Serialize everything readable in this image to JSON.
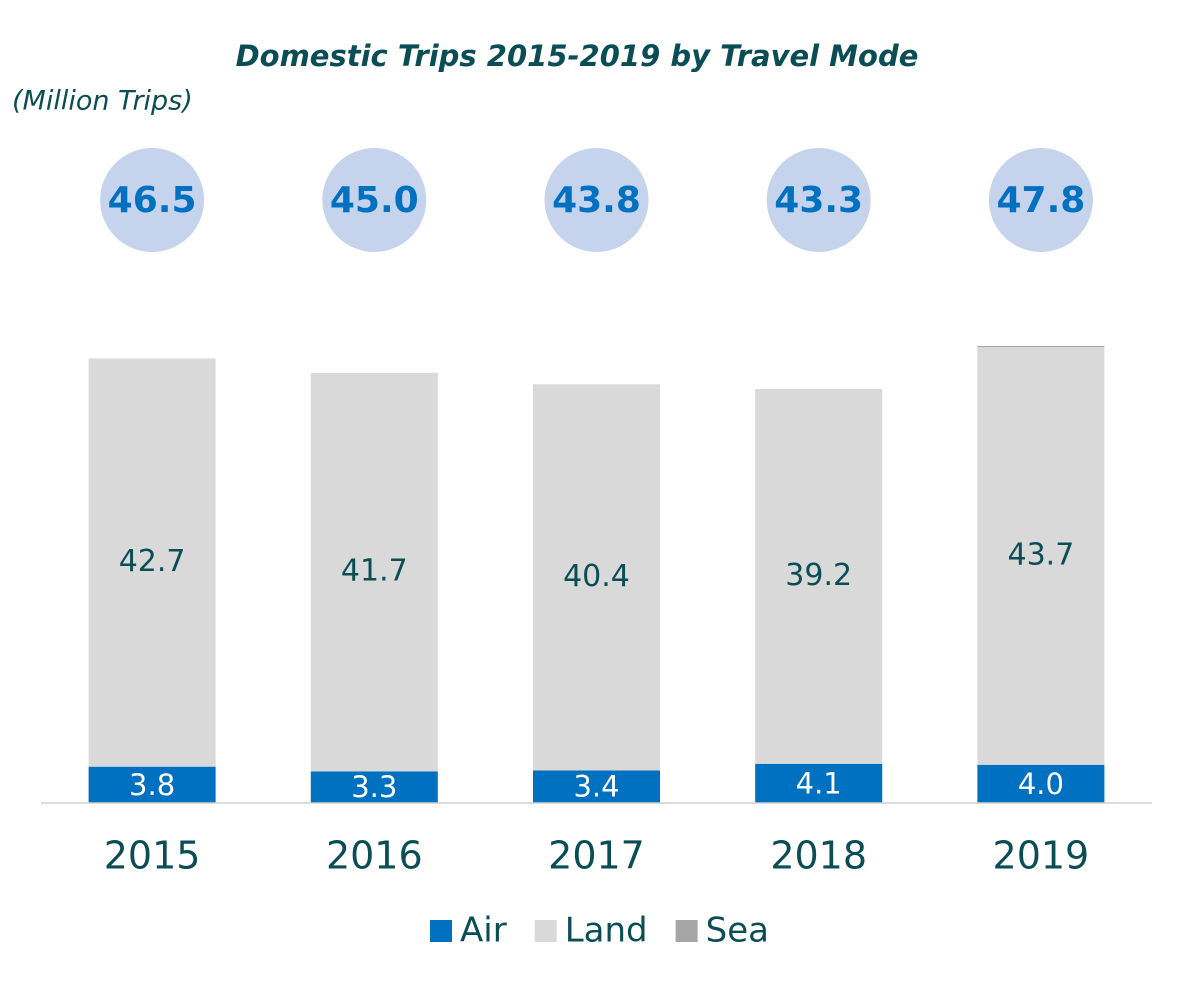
{
  "chart_data": {
    "type": "stacked_bar",
    "title": "Domestic Trips 2015-2019 by Travel Mode",
    "subtitle": "(Million Trips)",
    "categories": [
      "2015",
      "2016",
      "2017",
      "2018",
      "2019"
    ],
    "series": [
      {
        "name": "Air",
        "color": "#0070c0",
        "values": [
          3.8,
          3.3,
          3.4,
          4.1,
          4
        ],
        "value_labels": [
          "3.8",
          "3.3",
          "3.4",
          "4.1",
          "4.0"
        ]
      },
      {
        "name": "Land",
        "color": "#d9d9d9",
        "values": [
          42.7,
          41.7,
          40.4,
          39.2,
          43.7
        ]
      },
      {
        "name": "Sea",
        "color": "#a6a6a6",
        "values": [
          0,
          0,
          0,
          0,
          0.1
        ]
      }
    ],
    "totals": [
      46.5,
      45,
      43.8,
      43.3,
      47.8
    ],
    "total_labels": [
      "46.5",
      "45.0",
      "43.8",
      "43.3",
      "47.8"
    ],
    "ylim": [
      0,
      50
    ],
    "legend": "bottom"
  }
}
